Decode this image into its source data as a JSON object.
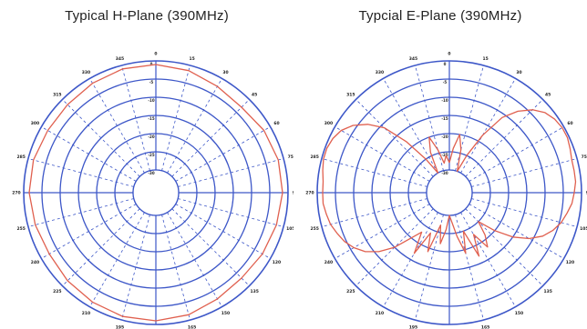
{
  "chart_data": [
    {
      "type": "polar-line",
      "title": "Typical H-Plane (390MHz)",
      "angle_ticks": [
        "0",
        "15",
        "30",
        "45",
        "60",
        "75",
        "90",
        "105",
        "120",
        "135",
        "150",
        "165",
        "180",
        "195",
        "210",
        "225",
        "240",
        "255",
        "270",
        "285",
        "300",
        "315",
        "330",
        "345"
      ],
      "radial_ticks": [
        "0",
        "-5",
        "-10",
        "-15",
        "-20",
        "-25",
        "-30"
      ],
      "rlim": [
        -30,
        0
      ],
      "series": [
        {
          "color": "#e0604f",
          "angles": [
            0,
            15,
            30,
            45,
            60,
            75,
            90,
            105,
            120,
            135,
            150,
            165,
            180,
            195,
            210,
            225,
            240,
            255,
            270,
            285,
            300,
            315,
            330,
            345,
            360
          ],
          "values": [
            -1,
            -1.5,
            -2.5,
            -3,
            -2,
            -1.5,
            -1.5,
            -2,
            -2.5,
            -3,
            -2.5,
            -1.5,
            -1,
            -1,
            -1.5,
            -2,
            -2.5,
            -2,
            -1.5,
            -1.5,
            -2,
            -2,
            -1.5,
            -1,
            -1
          ]
        }
      ]
    },
    {
      "type": "polar-line",
      "title": "Typcial E-Plane (390MHz)",
      "angle_ticks": [
        "0",
        "15",
        "30",
        "45",
        "60",
        "75",
        "90",
        "105",
        "120",
        "135",
        "150",
        "165",
        "180",
        "195",
        "210",
        "225",
        "240",
        "255",
        "270",
        "285",
        "300",
        "315",
        "330",
        "345"
      ],
      "radial_ticks": [
        "0",
        "-5",
        "-10",
        "-15",
        "-20",
        "-25",
        "-30"
      ],
      "rlim": [
        -30,
        0
      ],
      "series": [
        {
          "color": "#e0604f",
          "angles": [
            0,
            5,
            10,
            15,
            20,
            25,
            30,
            35,
            40,
            45,
            50,
            55,
            60,
            65,
            70,
            75,
            80,
            85,
            90,
            95,
            100,
            105,
            110,
            115,
            120,
            125,
            130,
            135,
            140,
            145,
            150,
            155,
            160,
            165,
            170,
            175,
            180,
            185,
            190,
            195,
            200,
            205,
            210,
            215,
            220,
            225,
            230,
            235,
            240,
            245,
            250,
            255,
            260,
            265,
            270,
            275,
            280,
            285,
            290,
            295,
            300,
            305,
            310,
            315,
            320,
            325,
            330,
            335,
            340,
            345,
            350,
            355,
            360
          ],
          "values": [
            -28,
            -24,
            -20,
            -24,
            -30,
            -25,
            -18,
            -11,
            -7,
            -4,
            -2,
            -1,
            -0.5,
            -0.5,
            -1,
            -1.5,
            -1.5,
            -1.5,
            -2,
            -2.5,
            -3.5,
            -4.5,
            -6,
            -8,
            -11,
            -15,
            -20,
            -25,
            -21,
            -18,
            -23,
            -17,
            -25,
            -19,
            -24,
            -28,
            -30,
            -26,
            -22,
            -27,
            -19,
            -24,
            -17,
            -23,
            -20,
            -15,
            -11,
            -8,
            -6,
            -4.5,
            -3.5,
            -2.5,
            -2,
            -1.5,
            -1.5,
            -1.5,
            -1,
            -0.5,
            -0.5,
            -1,
            -2,
            -4,
            -7,
            -11,
            -18,
            -25,
            -30,
            -24,
            -20,
            -24,
            -28,
            -26,
            -28
          ]
        }
      ]
    }
  ]
}
